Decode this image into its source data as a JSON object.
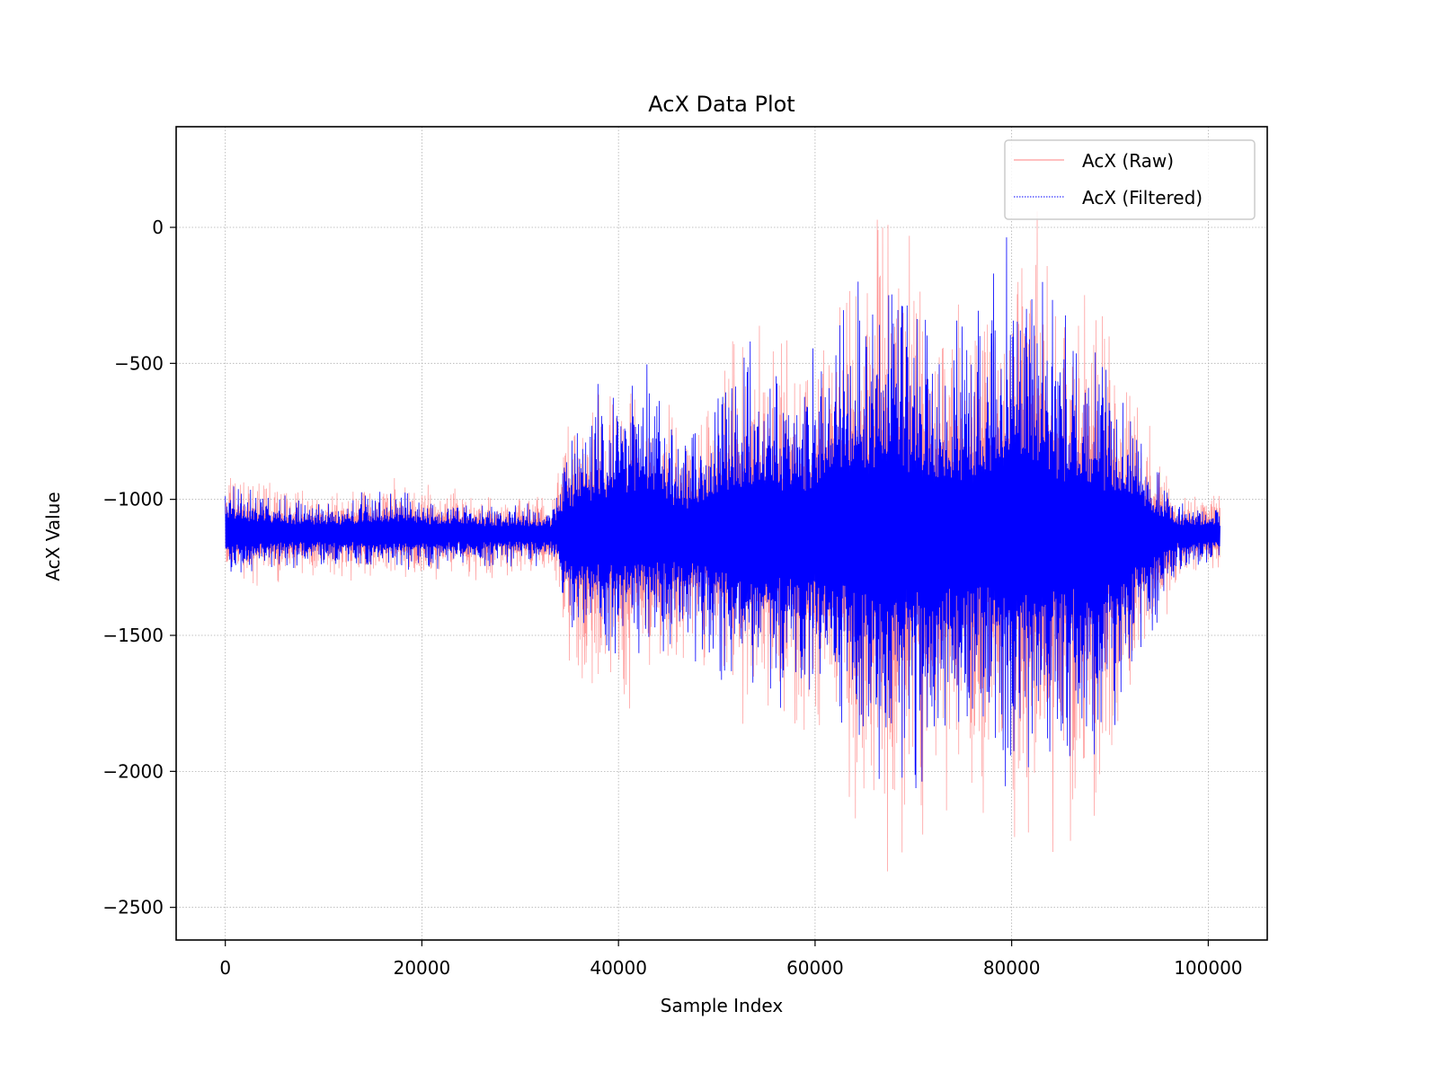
{
  "chart_data": {
    "type": "line",
    "title": "AcX Data Plot",
    "xlabel": "Sample Index",
    "ylabel": "AcX Value",
    "xlim": [
      -5000,
      106000
    ],
    "ylim": [
      -2620,
      370
    ],
    "x_ticks": [
      0,
      20000,
      40000,
      60000,
      80000,
      100000
    ],
    "x_tick_labels": [
      "0",
      "20000",
      "40000",
      "60000",
      "80000",
      "100000"
    ],
    "y_ticks": [
      0,
      -500,
      -1000,
      -1500,
      -2000,
      -2500
    ],
    "y_tick_labels": [
      "0",
      "−500",
      "−1000",
      "−1500",
      "−2000",
      "−2500"
    ],
    "grid": true,
    "legend_position": "top-right",
    "x_range": [
      0,
      101200
    ],
    "baseline": -1125,
    "series": [
      {
        "name": "AcX (Raw)",
        "color": "#ff8080",
        "style": "solid thin",
        "envelope": [
          {
            "x": 0,
            "max": -880,
            "min": -1330
          },
          {
            "x": 10000,
            "max": -960,
            "min": -1300
          },
          {
            "x": 17000,
            "max": -880,
            "min": -1310
          },
          {
            "x": 25000,
            "max": -960,
            "min": -1300
          },
          {
            "x": 33500,
            "max": -970,
            "min": -1280
          },
          {
            "x": 34500,
            "max": -640,
            "min": -1620
          },
          {
            "x": 38000,
            "max": -480,
            "min": -1820
          },
          {
            "x": 42000,
            "max": -520,
            "min": -1820
          },
          {
            "x": 47000,
            "max": -700,
            "min": -1650
          },
          {
            "x": 52500,
            "max": -290,
            "min": -1890
          },
          {
            "x": 58000,
            "max": -390,
            "min": -2010
          },
          {
            "x": 62500,
            "max": -130,
            "min": -2080
          },
          {
            "x": 65500,
            "max": 50,
            "min": -2470
          },
          {
            "x": 68500,
            "max": 220,
            "min": -2410
          },
          {
            "x": 72000,
            "max": -130,
            "min": -2270
          },
          {
            "x": 77000,
            "max": -150,
            "min": -2220
          },
          {
            "x": 81500,
            "max": 230,
            "min": -2390
          },
          {
            "x": 86000,
            "max": -220,
            "min": -2300
          },
          {
            "x": 88500,
            "max": 0,
            "min": -2290
          },
          {
            "x": 92000,
            "max": -480,
            "min": -1890
          },
          {
            "x": 95000,
            "max": -810,
            "min": -1560
          },
          {
            "x": 97000,
            "max": -960,
            "min": -1320
          },
          {
            "x": 101200,
            "max": -960,
            "min": -1300
          }
        ]
      },
      {
        "name": "AcX (Filtered)",
        "color": "#0000ff",
        "style": "dotted thin",
        "envelope": [
          {
            "x": 0,
            "max": -920,
            "min": -1290
          },
          {
            "x": 10000,
            "max": -990,
            "min": -1260
          },
          {
            "x": 17000,
            "max": -940,
            "min": -1280
          },
          {
            "x": 25000,
            "max": -1000,
            "min": -1270
          },
          {
            "x": 33500,
            "max": -1010,
            "min": -1250
          },
          {
            "x": 34500,
            "max": -700,
            "min": -1550
          },
          {
            "x": 38000,
            "max": -560,
            "min": -1650
          },
          {
            "x": 42000,
            "max": -410,
            "min": -1620
          },
          {
            "x": 47000,
            "max": -750,
            "min": -1580
          },
          {
            "x": 52500,
            "max": -340,
            "min": -1850
          },
          {
            "x": 58000,
            "max": -440,
            "min": -1900
          },
          {
            "x": 62500,
            "max": -200,
            "min": -1950
          },
          {
            "x": 65500,
            "max": -60,
            "min": -2150
          },
          {
            "x": 68500,
            "max": -100,
            "min": -2210
          },
          {
            "x": 72000,
            "max": -250,
            "min": -2050
          },
          {
            "x": 77000,
            "max": -260,
            "min": -2000
          },
          {
            "x": 80000,
            "max": 100,
            "min": -2180
          },
          {
            "x": 86000,
            "max": -300,
            "min": -2100
          },
          {
            "x": 88500,
            "max": -350,
            "min": -2050
          },
          {
            "x": 92000,
            "max": -560,
            "min": -1750
          },
          {
            "x": 95000,
            "max": -850,
            "min": -1480
          },
          {
            "x": 97000,
            "max": -1000,
            "min": -1280
          },
          {
            "x": 101200,
            "max": -1000,
            "min": -1260
          }
        ]
      }
    ]
  }
}
